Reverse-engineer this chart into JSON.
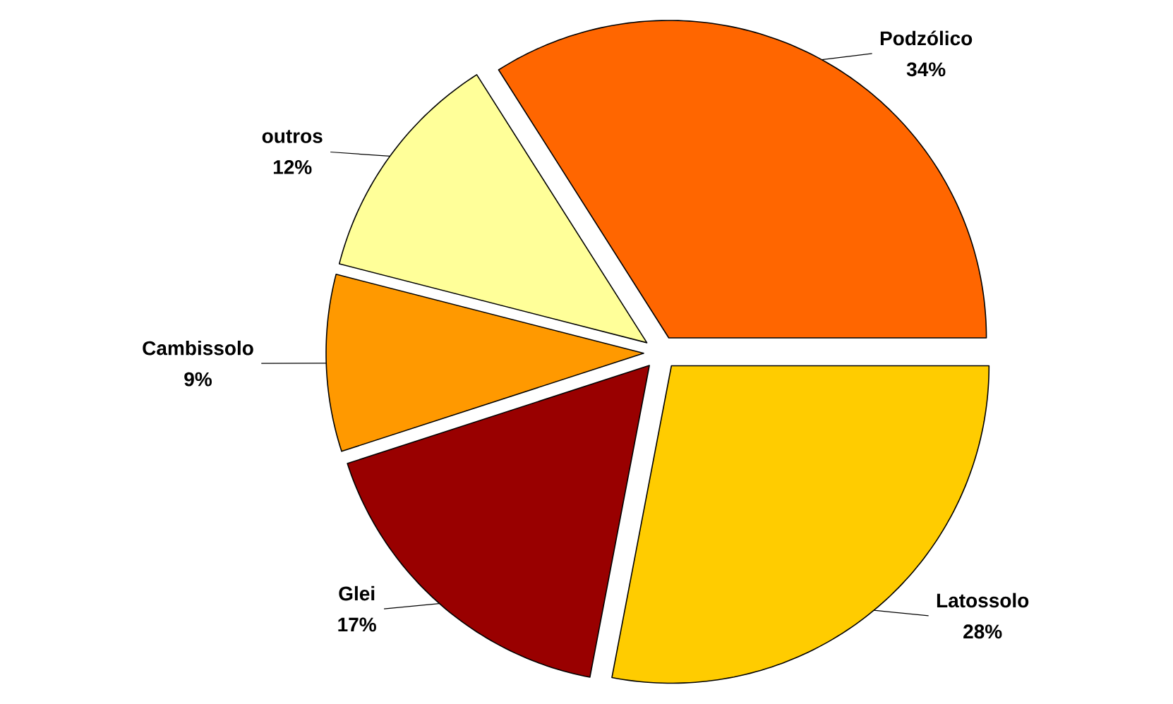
{
  "chart_data": {
    "type": "pie",
    "categories": [
      "Podzólico",
      "Latossolo",
      "Glei",
      "Cambissolo",
      "outros"
    ],
    "values": [
      34,
      28,
      17,
      9,
      12
    ],
    "colors": [
      "#ff6600",
      "#ffcc00",
      "#990000",
      "#ff9900",
      "#ffff99"
    ],
    "value_labels": [
      "34%",
      "28%",
      "17%",
      "9%",
      "12%"
    ]
  }
}
